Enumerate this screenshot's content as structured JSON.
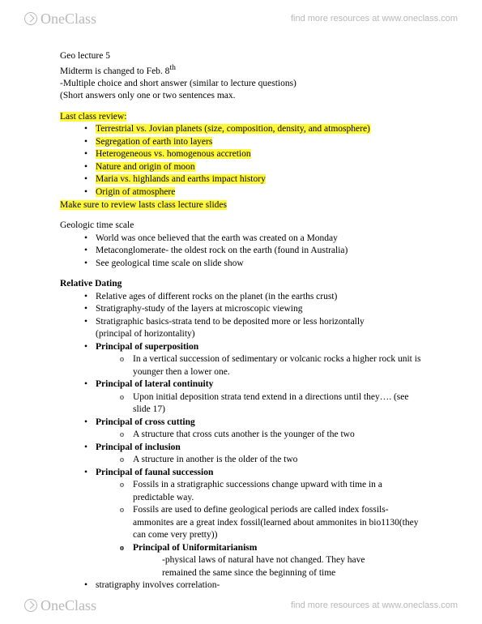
{
  "brand": {
    "name": "OneClass",
    "tagline": "find more resources at www.oneclass.com"
  },
  "doc": {
    "title": "Geo lecture 5",
    "midtermLine": "Midterm is changed to Feb. 8",
    "midtermSup": "th",
    "format1": "-Multiple choice and short answer (similar to lecture questions)",
    "format2": "(Short answers only one or two sentences max."
  },
  "review": {
    "heading": "Last class review:",
    "items": [
      "Terrestrial vs. Jovian planets (size, composition, density, and atmosphere)",
      "Segregation of earth into layers",
      "Heterogeneous vs. homogenous accretion",
      "Nature and origin of moon",
      "Maria vs. highlands and earths impact history",
      "Origin of atmosphere"
    ],
    "footer": "Make sure to review lasts class lecture slides"
  },
  "geoTime": {
    "heading": "Geologic time scale",
    "items": [
      "World was once believed that the earth was created on a Monday",
      "Metaconglomerate- the oldest rock on the earth (found in Australia)",
      "See geological time scale on slide show"
    ]
  },
  "relDating": {
    "heading": "Relative Dating",
    "i1": "Relative ages of different rocks on the planet (in the earths crust)",
    "i2": "Stratigraphy-study of the layers at microscopic viewing",
    "i3a": "Stratigraphic basics-strata tend to be deposited more or less horizontally",
    "i3b": "(principal of horizontality)",
    "p1": "Principal of superposition",
    "p1s": "In a vertical succession of sedimentary or volcanic rocks a higher rock unit is younger then a lower one.",
    "p2": "Principal of lateral continuity",
    "p2s": "Upon initial deposition strata tend extend in a directions until they…. (see slide 17)",
    "p3": "Principal of cross cutting",
    "p3s": "A structure that cross cuts another is the younger of the two",
    "p4": "Principal of inclusion",
    "p4s": "A structure in another is the older of the two",
    "p5": "Principal of faunal succession",
    "p5s1": "Fossils in a stratigraphic successions change upward with time in a predictable way.",
    "p5s2": "Fossils are used to define geological periods are called index fossils- ammonites are a great index fossil(learned about ammonites in bio1130(they can come very pretty))",
    "p6": "Principal of Uniformitarianism",
    "p6s1": "-physical laws of natural have not changed. They have",
    "p6s2": "remained the same since the beginning of time",
    "last": "stratigraphy involves correlation-"
  }
}
